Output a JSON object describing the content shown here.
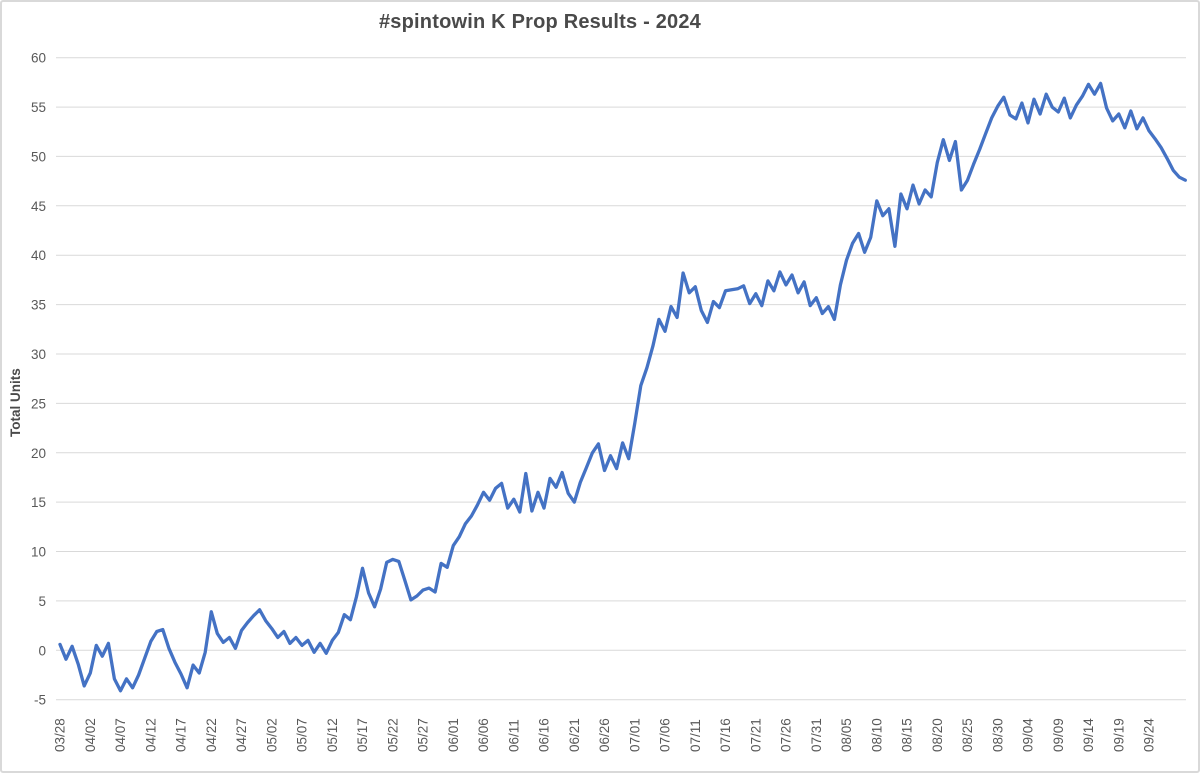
{
  "chart_data": {
    "type": "line",
    "title": "#spintowin K Prop Results - 2024",
    "xlabel": "",
    "ylabel": "Total Units",
    "legend": "none",
    "grid": "horizontal",
    "ylim": [
      -5,
      60
    ],
    "ytick_step": 5,
    "x_tick_interval_days": 5,
    "x_tick_labels": [
      "03/28",
      "04/02",
      "04/07",
      "04/12",
      "04/17",
      "04/22",
      "04/27",
      "05/02",
      "05/07",
      "05/12",
      "05/17",
      "05/22",
      "05/27",
      "06/01",
      "06/06",
      "06/11",
      "06/16",
      "06/21",
      "06/26",
      "07/01",
      "07/06",
      "07/11",
      "07/16",
      "07/21",
      "07/26",
      "07/31",
      "08/05",
      "08/10",
      "08/15",
      "08/20",
      "08/25",
      "08/30",
      "09/04",
      "09/09",
      "09/14",
      "09/19",
      "09/24"
    ],
    "x_start_date": "03/28",
    "x_frequency": "daily",
    "series": [
      {
        "name": "Total Units",
        "color": "#4472C4",
        "values": [
          0.6,
          -0.9,
          0.4,
          -1.4,
          -3.6,
          -2.3,
          0.5,
          -0.6,
          0.7,
          -2.9,
          -4.1,
          -2.9,
          -3.8,
          -2.5,
          -0.8,
          0.9,
          1.9,
          2.1,
          0.2,
          -1.2,
          -2.4,
          -3.8,
          -1.5,
          -2.3,
          -0.2,
          3.9,
          1.7,
          0.8,
          1.3,
          0.2,
          2.0,
          2.8,
          3.5,
          4.1,
          3.0,
          2.2,
          1.3,
          1.9,
          0.7,
          1.3,
          0.5,
          1.0,
          -0.2,
          0.7,
          -0.3,
          1.0,
          1.8,
          3.6,
          3.1,
          5.4,
          8.3,
          5.8,
          4.4,
          6.2,
          8.9,
          9.2,
          9.0,
          7.1,
          5.1,
          5.5,
          6.1,
          6.3,
          5.9,
          8.8,
          8.4,
          10.6,
          11.5,
          12.8,
          13.6,
          14.7,
          16.0,
          15.2,
          16.4,
          16.9,
          14.4,
          15.3,
          14.0,
          17.9,
          14.1,
          16.0,
          14.4,
          17.4,
          16.5,
          18.0,
          15.9,
          15.0,
          17.0,
          18.5,
          20.0,
          20.9,
          18.2,
          19.7,
          18.4,
          21.0,
          19.4,
          23.0,
          26.8,
          28.6,
          30.8,
          33.5,
          32.3,
          34.8,
          33.7,
          38.2,
          36.2,
          36.8,
          34.4,
          33.2,
          35.3,
          34.7,
          36.4,
          36.5,
          36.6,
          36.9,
          35.1,
          36.1,
          34.9,
          37.4,
          36.4,
          38.3,
          37.0,
          38.0,
          36.2,
          37.3,
          34.9,
          35.7,
          34.1,
          34.8,
          33.5,
          37.0,
          39.5,
          41.2,
          42.2,
          40.3,
          41.8,
          45.5,
          44.0,
          44.7,
          40.9,
          46.2,
          44.7,
          47.1,
          45.2,
          46.6,
          45.9,
          49.4,
          51.7,
          49.6,
          51.5,
          46.6,
          47.6,
          49.2,
          50.7,
          52.3,
          53.9,
          55.1,
          56.0,
          54.2,
          53.8,
          55.4,
          53.4,
          55.8,
          54.3,
          56.3,
          55.0,
          54.5,
          55.9,
          53.9,
          55.2,
          56.1,
          57.3,
          56.3,
          57.4,
          54.9,
          53.6,
          54.3,
          52.9,
          54.6,
          52.8,
          53.9,
          52.6,
          51.8,
          50.9,
          49.8,
          48.6,
          47.9,
          47.6
        ]
      }
    ]
  },
  "styles": {
    "line_color": "#4472C4",
    "grid_color": "#D9D9D9",
    "tick_label_color": "#595959",
    "title_color": "#4A4A4A",
    "axis_title_color": "#4A4A4A",
    "background_color": "#FFFFFF",
    "frame_border_color": "#D9D9D9"
  }
}
